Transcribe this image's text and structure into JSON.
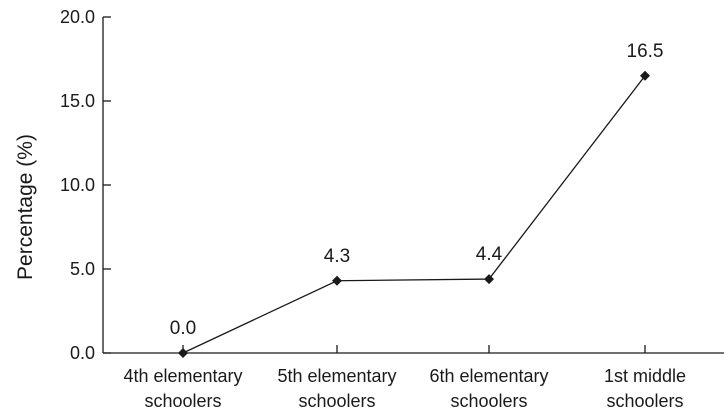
{
  "chart_data": {
    "type": "line",
    "title": "",
    "xlabel": "",
    "ylabel": "Percentage (%)",
    "ylim": [
      0,
      20
    ],
    "yticks": [
      "0.0",
      "5.0",
      "10.0",
      "15.0",
      "20.0"
    ],
    "categories": [
      [
        "4th elementary",
        "schoolers"
      ],
      [
        "5th elementary",
        "schoolers"
      ],
      [
        "6th elementary",
        "schoolers"
      ],
      [
        "1st middle",
        "schoolers"
      ]
    ],
    "series": [
      {
        "values": [
          0.0,
          4.3,
          4.4,
          16.5
        ],
        "labels": [
          "0.0",
          "4.3",
          "4.4",
          "16.5"
        ],
        "marker": "diamond",
        "color": "#1a1a1a"
      }
    ],
    "grid": false,
    "legend": "none"
  }
}
